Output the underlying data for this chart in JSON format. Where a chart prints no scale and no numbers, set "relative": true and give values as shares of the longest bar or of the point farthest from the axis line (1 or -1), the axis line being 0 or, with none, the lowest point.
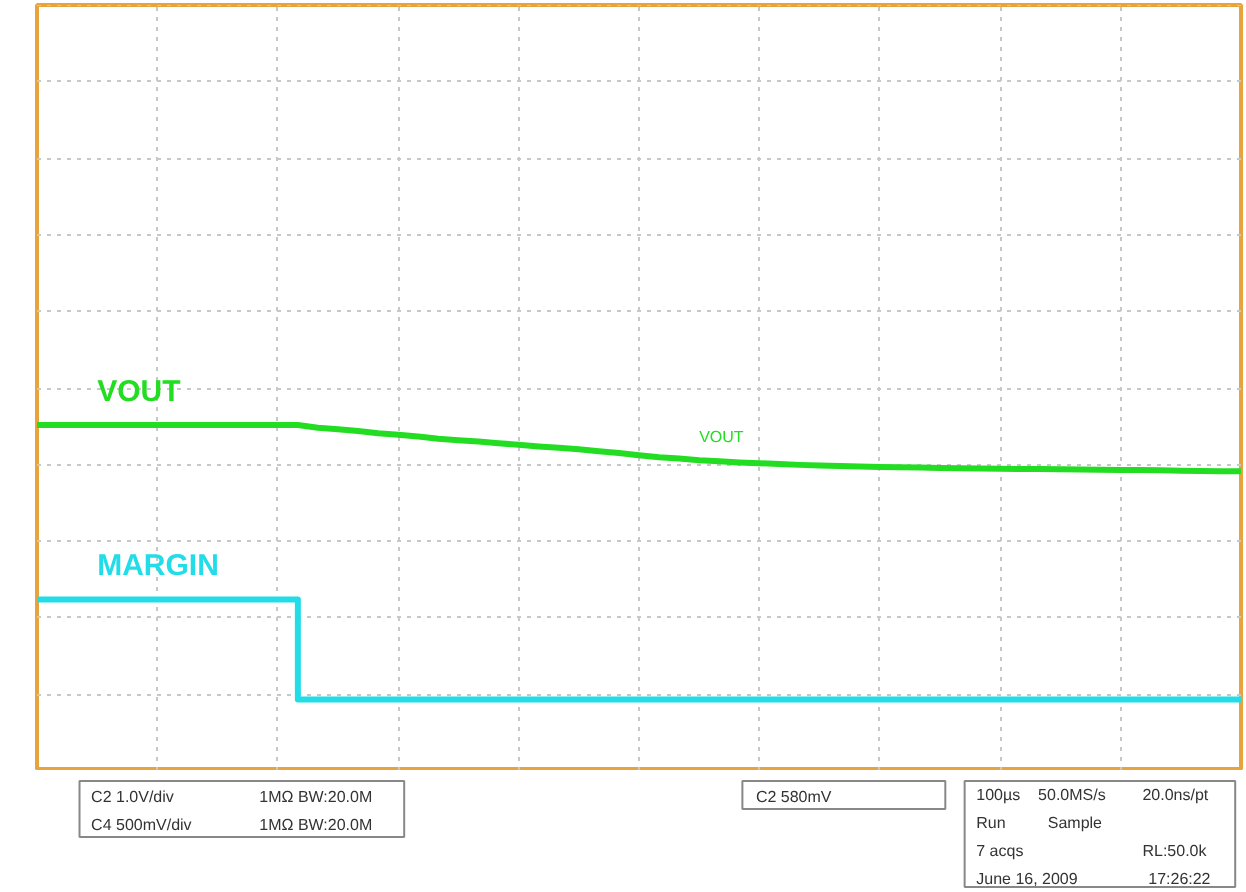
{
  "chart_data": {
    "type": "line",
    "relative": true,
    "grid": true,
    "categories": [
      null,
      null,
      null,
      null,
      null,
      null,
      null,
      null,
      null,
      null,
      null,
      null,
      null,
      null,
      null,
      null,
      null,
      null,
      null,
      null,
      null,
      null,
      null,
      null,
      null,
      null,
      null,
      null,
      null,
      null,
      null,
      null,
      null,
      null,
      null,
      null,
      null,
      null,
      null,
      null,
      null,
      null,
      null,
      null,
      null,
      null,
      null,
      null,
      null,
      null,
      null,
      null,
      null,
      null,
      null,
      null,
      null,
      null,
      null,
      null,
      null
    ],
    "series": [
      {
        "name": "VOUT",
        "color": "#22dd22",
        "values": [
          1.0,
          1.0,
          1.0,
          1.0,
          1.0,
          1.0,
          1.0,
          1.0,
          1.0,
          1.0,
          1.0,
          1.0,
          1.0,
          1.0,
          0.99,
          0.985,
          0.978,
          0.97,
          0.965,
          0.958,
          0.95,
          0.945,
          0.94,
          0.934,
          0.928,
          0.922,
          0.917,
          0.912,
          0.905,
          0.898,
          0.89,
          0.883,
          0.878,
          0.872,
          0.868,
          0.864,
          0.861,
          0.858,
          0.855,
          0.853,
          0.851,
          0.849,
          0.847,
          0.846,
          0.845,
          0.844,
          0.843,
          0.842,
          0.841,
          0.84,
          0.84,
          0.839,
          0.838,
          0.837,
          0.836,
          0.836,
          0.835,
          0.834,
          0.833,
          0.832,
          0.832
        ]
      },
      {
        "name": "MARGIN",
        "color": "#22dde8",
        "type": "step",
        "values": [
          0.365,
          0.365,
          0.365,
          0.365,
          0.365,
          0.365,
          0.365,
          0.365,
          0.365,
          0.365,
          0.365,
          0.365,
          0.365,
          0,
          0,
          0,
          0,
          0,
          0,
          0,
          0,
          0,
          0,
          0,
          0,
          0,
          0,
          0,
          0,
          0,
          0,
          0,
          0,
          0,
          0,
          0,
          0,
          0,
          0,
          0,
          0,
          0,
          0,
          0,
          0,
          0,
          0,
          0,
          0,
          0,
          0,
          0,
          0,
          0,
          0,
          0,
          0,
          0,
          0,
          0,
          0
        ]
      }
    ],
    "annotations": [
      "VOUT",
      "C2 1.0V/div",
      "1MΩ BW:20.0M",
      "C4 500mV/div",
      "1MΩ BW:20.0M",
      "C2 580mV",
      "100µs",
      "50.0MS/s",
      "20.0ns/pt",
      "Run",
      "Sample",
      "7 acqs",
      "RL:50.0k",
      "June 16, 2009",
      "17:26:22"
    ]
  }
}
